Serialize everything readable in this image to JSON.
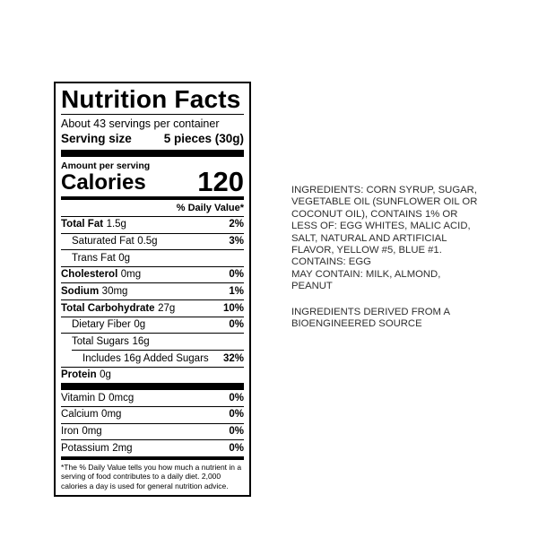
{
  "label": {
    "title": "Nutrition Facts",
    "servings_per_container": "About 43 servings per container",
    "serving_size_label": "Serving size",
    "serving_size_value": "5 pieces (30g)",
    "amount_per_serving": "Amount per serving",
    "calories_label": "Calories",
    "calories_value": "120",
    "daily_value_header": "% Daily Value*",
    "rows": [
      {
        "label": "Total Fat",
        "amount": "1.5g",
        "dv": "2%",
        "bold": true,
        "indent": 0
      },
      {
        "label": "Saturated Fat",
        "amount": "0.5g",
        "dv": "3%",
        "bold": false,
        "indent": 1
      },
      {
        "label": "Trans Fat",
        "amount": "0g",
        "dv": "",
        "bold": false,
        "indent": 1
      },
      {
        "label": "Cholesterol",
        "amount": "0mg",
        "dv": "0%",
        "bold": true,
        "indent": 0
      },
      {
        "label": "Sodium",
        "amount": "30mg",
        "dv": "1%",
        "bold": true,
        "indent": 0
      },
      {
        "label": "Total Carbohydrate",
        "amount": "27g",
        "dv": "10%",
        "bold": true,
        "indent": 0
      },
      {
        "label": "Dietary Fiber",
        "amount": "0g",
        "dv": "0%",
        "bold": false,
        "indent": 1
      },
      {
        "label": "Total Sugars",
        "amount": "16g",
        "dv": "",
        "bold": false,
        "indent": 1
      },
      {
        "label": "Includes 16g Added Sugars",
        "amount": "",
        "dv": "32%",
        "bold": false,
        "indent": 2,
        "indented_separator": true
      },
      {
        "label": "Protein",
        "amount": "0g",
        "dv": "",
        "bold": true,
        "indent": 0
      }
    ],
    "vitamins": [
      {
        "label": "Vitamin D",
        "amount": "0mcg",
        "dv": "0%"
      },
      {
        "label": "Calcium",
        "amount": "0mg",
        "dv": "0%"
      },
      {
        "label": "Iron",
        "amount": "0mg",
        "dv": "0%"
      },
      {
        "label": "Potassium",
        "amount": "2mg",
        "dv": "0%"
      }
    ],
    "footnote": "*The % Daily Value tells you how much a nutrient in a serving of food contributes to a daily diet. 2,000 calories a day is used for general nutrition advice."
  },
  "ingredients": {
    "text": "INGREDIENTS: CORN SYRUP, SUGAR,\nVEGETABLE OIL (SUNFLOWER OIL OR\nCOCONUT OIL), CONTAINS 1% OR\nLESS OF: EGG WHITES, MALIC ACID,\nSALT, NATURAL AND ARTIFICIAL\nFLAVOR, YELLOW #5, BLUE #1.\nCONTAINS: EGG\nMAY CONTAIN: MILK, ALMOND,\nPEANUT",
    "bioengineered": "INGREDIENTS DERIVED FROM A\nBIOENGINEERED SOURCE"
  },
  "colors": {
    "label_text": "#000000",
    "ingredients_text": "#2e2e2e",
    "background": "#ffffff"
  }
}
